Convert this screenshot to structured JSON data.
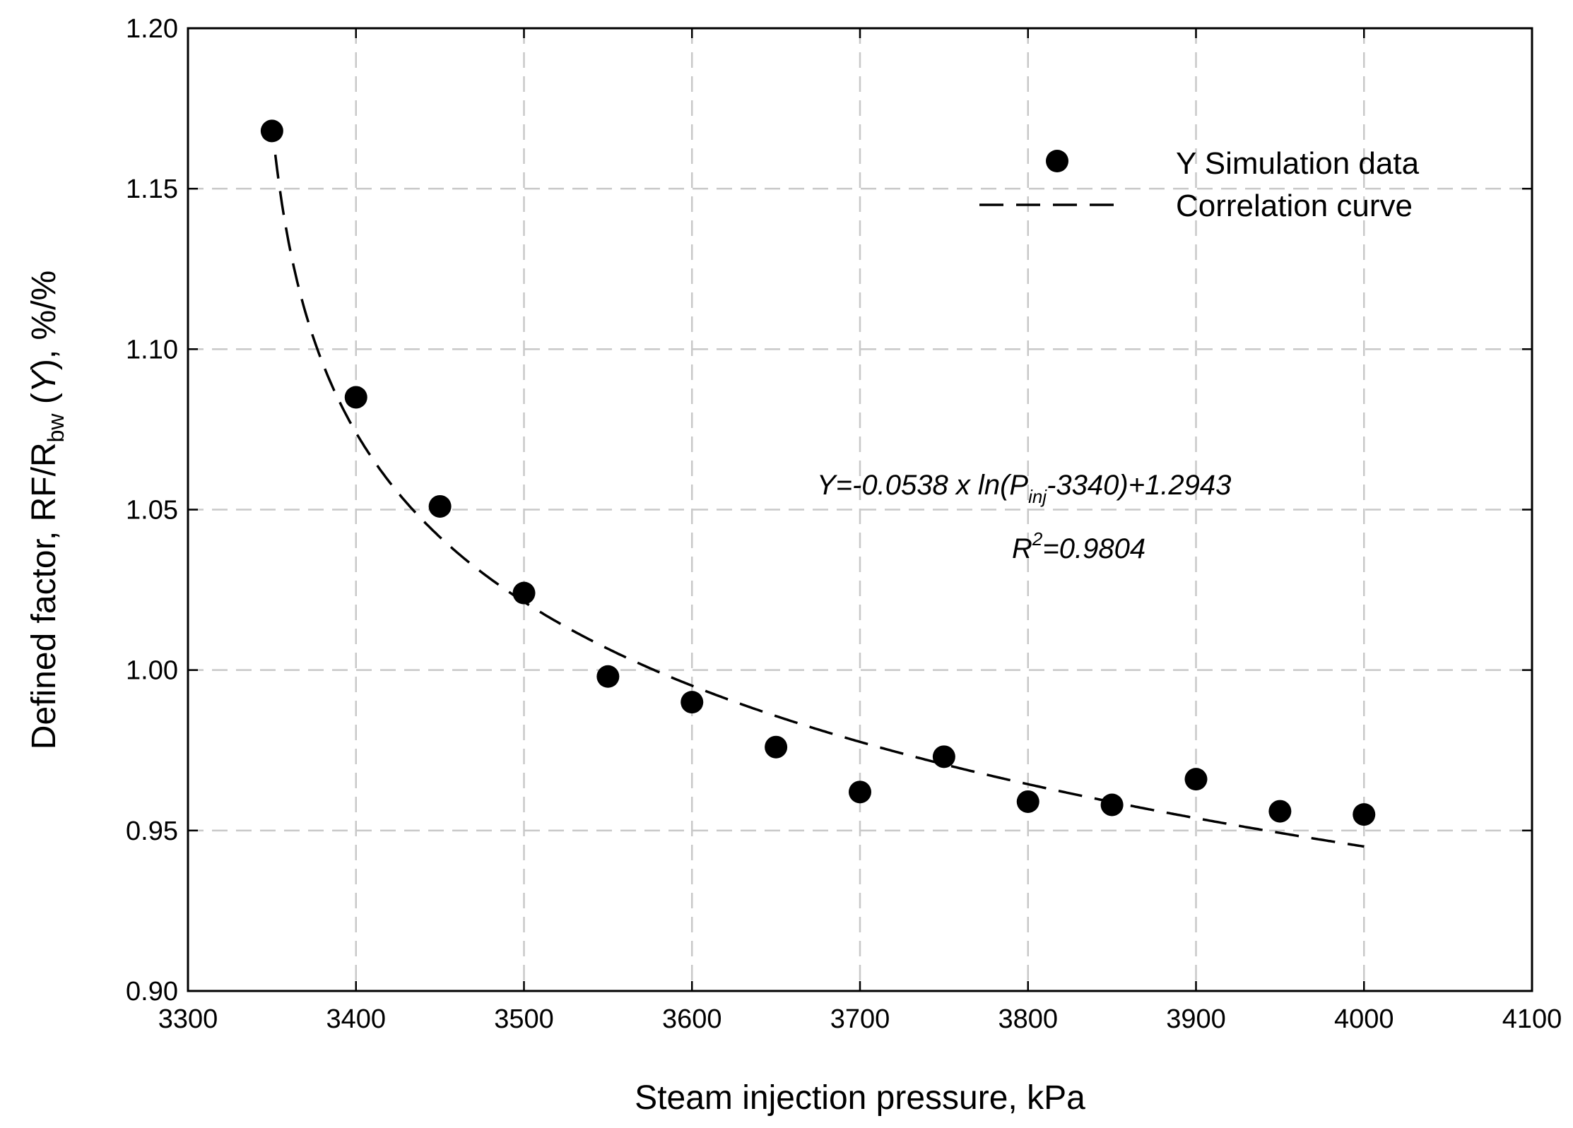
{
  "chart_data": {
    "type": "scatter",
    "xlabel": "Steam injection pressure, kPa",
    "ylabel_parts": {
      "before": "Defined factor, RF/R",
      "subscript": "bw",
      "after_space": " (",
      "italic": "Y",
      "end": "), %/%"
    },
    "xlim": [
      3300,
      4100
    ],
    "ylim": [
      0.9,
      1.2
    ],
    "x_ticks": [
      3300,
      3400,
      3500,
      3600,
      3700,
      3800,
      3900,
      4000,
      4100
    ],
    "y_ticks": [
      0.9,
      0.95,
      1.0,
      1.05,
      1.1,
      1.15,
      1.2
    ],
    "grid": true,
    "series": [
      {
        "name": "Y Simulation data",
        "kind": "points",
        "x": [
          3350,
          3400,
          3450,
          3500,
          3550,
          3600,
          3650,
          3700,
          3750,
          3800,
          3850,
          3900,
          3950,
          4000
        ],
        "y": [
          1.168,
          1.085,
          1.051,
          1.024,
          0.998,
          0.99,
          0.976,
          0.962,
          0.973,
          0.959,
          0.958,
          0.966,
          0.956,
          0.955
        ]
      },
      {
        "name": "Correlation curve",
        "kind": "dashed-line",
        "equation": {
          "a": -0.0538,
          "offset": 3340,
          "b": 1.2943
        },
        "x_range": [
          3352,
          4000
        ]
      }
    ],
    "legend": {
      "position": "top-right",
      "entries": [
        "Y Simulation data",
        "Correlation curve"
      ]
    },
    "annotation": {
      "eq_prefix": "Y=-0.0538 x ln(P",
      "eq_sub": "inj",
      "eq_suffix": "-3340)+1.2943",
      "r2_base": "R",
      "r2_sup": "2",
      "r2_value": "=0.9804"
    }
  }
}
